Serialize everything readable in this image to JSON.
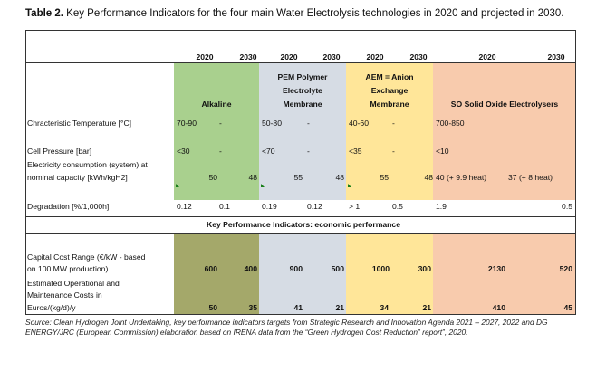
{
  "caption": {
    "label": "Table 2.",
    "text": " Key Performance Indicators for the four main Water Electrolysis technologies in 2020 and projected in 2030."
  },
  "years": [
    "2020",
    "2030",
    "2020",
    "2030",
    "2020",
    "2030",
    "2020",
    "2030"
  ],
  "technologies": {
    "alkaline": "Alkaline",
    "pem": [
      "PEM Polymer",
      "Electrolyte",
      "Membrane"
    ],
    "aem": [
      "AEM = Anion",
      "Exchange",
      "Membrane"
    ],
    "so": "SO Solid Oxide Electrolysers"
  },
  "rows": [
    {
      "label": [
        "Chracteristic Temperature [°C]"
      ],
      "values": [
        "70-90",
        "-",
        "50-80",
        "-",
        "40-60",
        "-",
        "700-850",
        ""
      ]
    },
    {
      "label": [
        "Cell Pressure [bar]"
      ],
      "values": [
        "<30",
        "-",
        "<70",
        "-",
        "<35",
        "-",
        "<10",
        ""
      ]
    },
    {
      "label": [
        "Electricity consumption (system) at",
        "nominal capacity [kWh/kgH2]"
      ],
      "values": [
        "50",
        "48",
        "55",
        "48",
        "55",
        "48",
        "40 (+ 9.9 heat)",
        "37 (+ 8 heat)"
      ]
    },
    {
      "label": [
        "Degradation [%/1,000h]"
      ],
      "values": [
        "0.12",
        "0.1",
        "0.19",
        "0.12",
        "> 1",
        "0.5",
        "1.9",
        "0.5"
      ]
    }
  ],
  "section_header": "Key Performance Indicators: economic performance",
  "econ_rows": [
    {
      "label": [
        "Capital Cost Range (€/kW - based",
        "on 100 MW production)"
      ],
      "values": [
        "600",
        "400",
        "900",
        "500",
        "1000",
        "300",
        "2130",
        "520"
      ]
    },
    {
      "label": [
        "Estimated Operational and",
        "Maintenance Costs in",
        "Euros/(kg/d)/y"
      ],
      "values": [
        "50",
        "35",
        "41",
        "21",
        "34",
        "21",
        "410",
        "45"
      ]
    }
  ],
  "source": "Source: Clean Hydrogen Joint Undertaking, key performance indicators targets from Strategic Research and Innovation Agenda 2021 – 2027, 2022 and DG ENERGY/JRC (European Commission) elaboration based on IRENA data from the “Green Hydrogen Cost Reduction” report”, 2020.",
  "colors": {
    "alkaline": "#a9d08e",
    "alkaline_econ": "#a4a86a",
    "pem": "#d6dce4",
    "aem": "#ffe699",
    "so": "#f8cbad",
    "marker": "#1a7f1a"
  }
}
